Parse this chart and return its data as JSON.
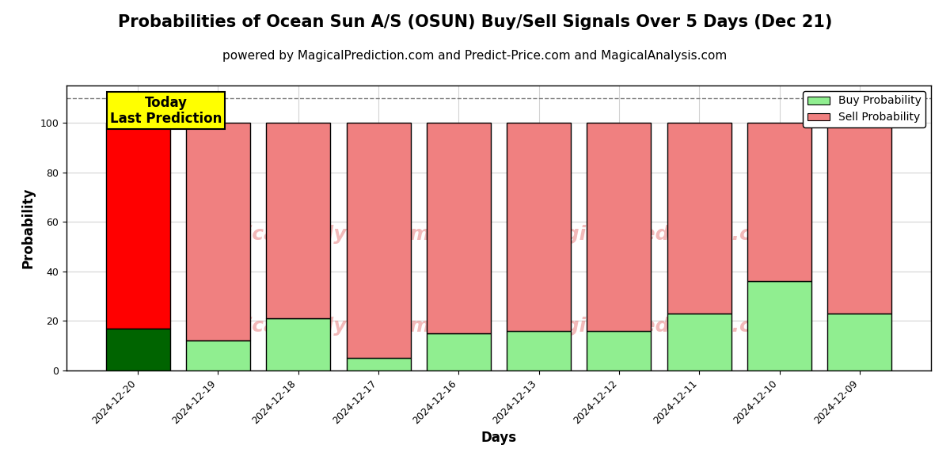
{
  "title": "Probabilities of Ocean Sun A/S (OSUN) Buy/Sell Signals Over 5 Days (Dec 21)",
  "subtitle": "powered by MagicalPrediction.com and Predict-Price.com and MagicalAnalysis.com",
  "xlabel": "Days",
  "ylabel": "Probability",
  "dates": [
    "2024-12-20",
    "2024-12-19",
    "2024-12-18",
    "2024-12-17",
    "2024-12-16",
    "2024-12-13",
    "2024-12-12",
    "2024-12-11",
    "2024-12-10",
    "2024-12-09"
  ],
  "buy_probs": [
    17,
    12,
    21,
    5,
    15,
    16,
    16,
    23,
    36,
    23
  ],
  "sell_probs": [
    83,
    88,
    79,
    95,
    85,
    84,
    84,
    77,
    64,
    77
  ],
  "today_buy_color": "#006400",
  "today_sell_color": "#ff0000",
  "buy_color": "#90EE90",
  "sell_color": "#F08080",
  "bar_edge_color": "#000000",
  "today_label_bg": "#ffff00",
  "today_label_text": "Today\nLast Prediction",
  "dashed_line_y": 110,
  "ylim": [
    0,
    115
  ],
  "yticks": [
    0,
    20,
    40,
    60,
    80,
    100
  ],
  "bar_width": 0.8,
  "title_fontsize": 15,
  "subtitle_fontsize": 11,
  "axis_label_fontsize": 12,
  "tick_fontsize": 9,
  "legend_fontsize": 10,
  "today_label_fontsize": 12
}
